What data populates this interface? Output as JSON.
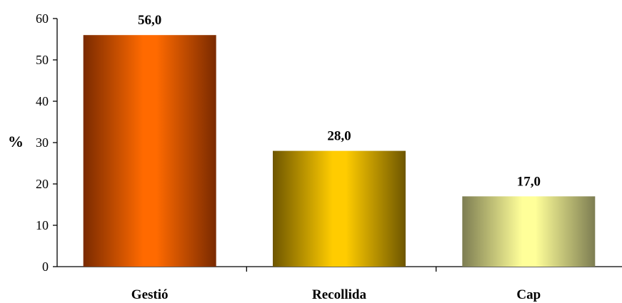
{
  "chart_data": {
    "type": "bar",
    "title": "",
    "xlabel": "",
    "ylabel": "%",
    "ylim": [
      0,
      60
    ],
    "yticks": [
      0,
      10,
      20,
      30,
      40,
      50,
      60
    ],
    "grid": false,
    "legend": "none",
    "categories": [
      "Gestió",
      "Recollida",
      "Cap"
    ],
    "values": [
      56.0,
      28.0,
      17.0
    ],
    "data_labels": [
      "56,0",
      "28,0",
      "17,0"
    ],
    "bar_colors": [
      {
        "edge": "#7a2a00",
        "center": "#ff6a00"
      },
      {
        "edge": "#6e5600",
        "center": "#ffcc00"
      },
      {
        "edge": "#7d7d52",
        "center": "#ffff99"
      }
    ]
  }
}
